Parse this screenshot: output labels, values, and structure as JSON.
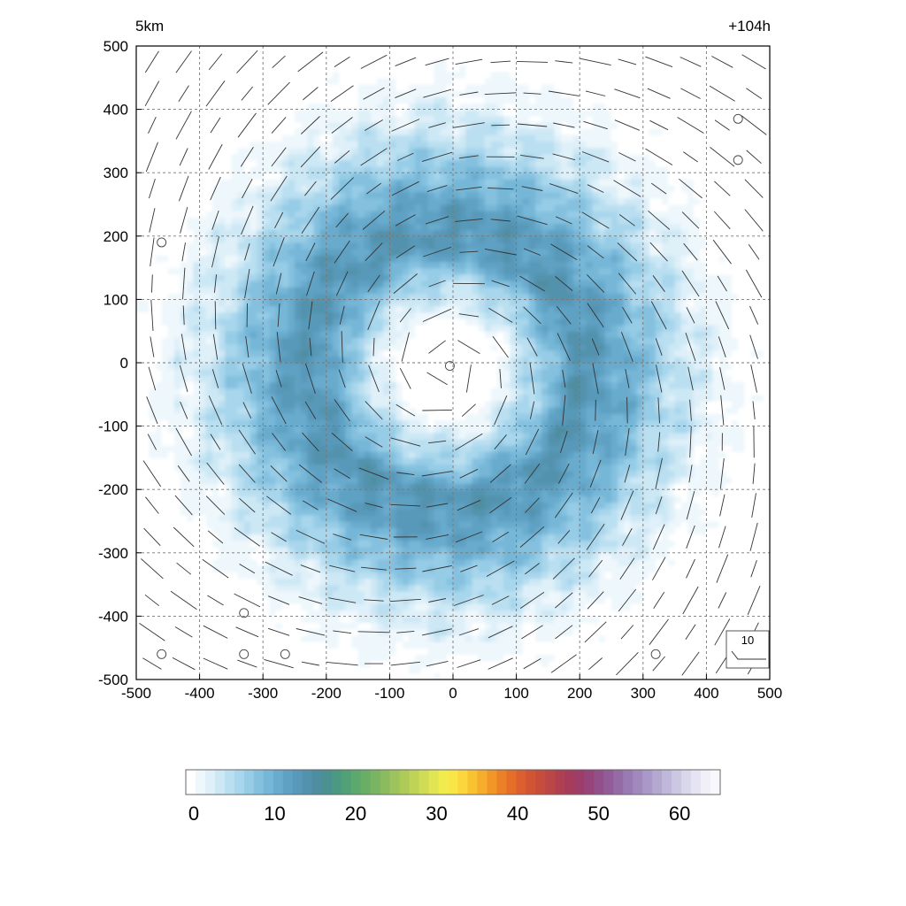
{
  "chart_data": {
    "type": "heatmap",
    "title_left": "5km",
    "title_right": "+104h",
    "xlim": [
      -500,
      500
    ],
    "ylim": [
      -500,
      500
    ],
    "x_ticks": [
      -500,
      -400,
      -300,
      -200,
      -100,
      0,
      100,
      200,
      300,
      400,
      500
    ],
    "y_ticks": [
      500,
      400,
      300,
      200,
      100,
      0,
      -100,
      -200,
      -300,
      -400,
      -500
    ],
    "grid": true,
    "field": {
      "center": [
        -10,
        -10
      ],
      "ring_radius_km": 200,
      "eye_radius_km": 80,
      "max_value": 14
    },
    "wind_vectors": {
      "spacing_km": 50,
      "rotation": "counterclockwise",
      "reference_label": "10",
      "calm_marks": [
        [
          450,
          385
        ],
        [
          450,
          320
        ],
        [
          -460,
          190
        ],
        [
          -5,
          -5
        ],
        [
          -330,
          -395
        ],
        [
          -460,
          -460
        ],
        [
          -330,
          -460
        ],
        [
          -265,
          -460
        ],
        [
          320,
          -460
        ]
      ]
    },
    "colorbar": {
      "ticks": [
        "0",
        "10",
        "20",
        "30",
        "40",
        "50",
        "60"
      ],
      "min": 0,
      "max": 66,
      "colors": [
        "#ffffff",
        "#eef7fc",
        "#dff0f9",
        "#cde8f5",
        "#badff1",
        "#a8d6ec",
        "#96cce6",
        "#85c1df",
        "#76b6d7",
        "#69abcd",
        "#5fa1c3",
        "#5898b8",
        "#5392ac",
        "#4f8ea0",
        "#4b9191",
        "#4b9883",
        "#51a077",
        "#5ca86d",
        "#6aae66",
        "#7ab462",
        "#8bbb5f",
        "#9cc35c",
        "#aecb59",
        "#bfd357",
        "#d0dc55",
        "#e1e453",
        "#f0ec4e",
        "#f8e646",
        "#fbd63c",
        "#f9c233",
        "#f6ad2c",
        "#f29628",
        "#ec8027",
        "#e56e2a",
        "#dc5f30",
        "#d15435",
        "#c64c3c",
        "#bb4646",
        "#b04050",
        "#a63c5c",
        "#9c3d6a",
        "#964479",
        "#924f89",
        "#925c98",
        "#956ba6",
        "#9a7ab3",
        "#a189be",
        "#aa98c8",
        "#b4a8d1",
        "#c0b8da",
        "#ccc8e3",
        "#d9d7eb",
        "#e6e4f2",
        "#f1f0f8",
        "#f8f8fc"
      ]
    }
  }
}
